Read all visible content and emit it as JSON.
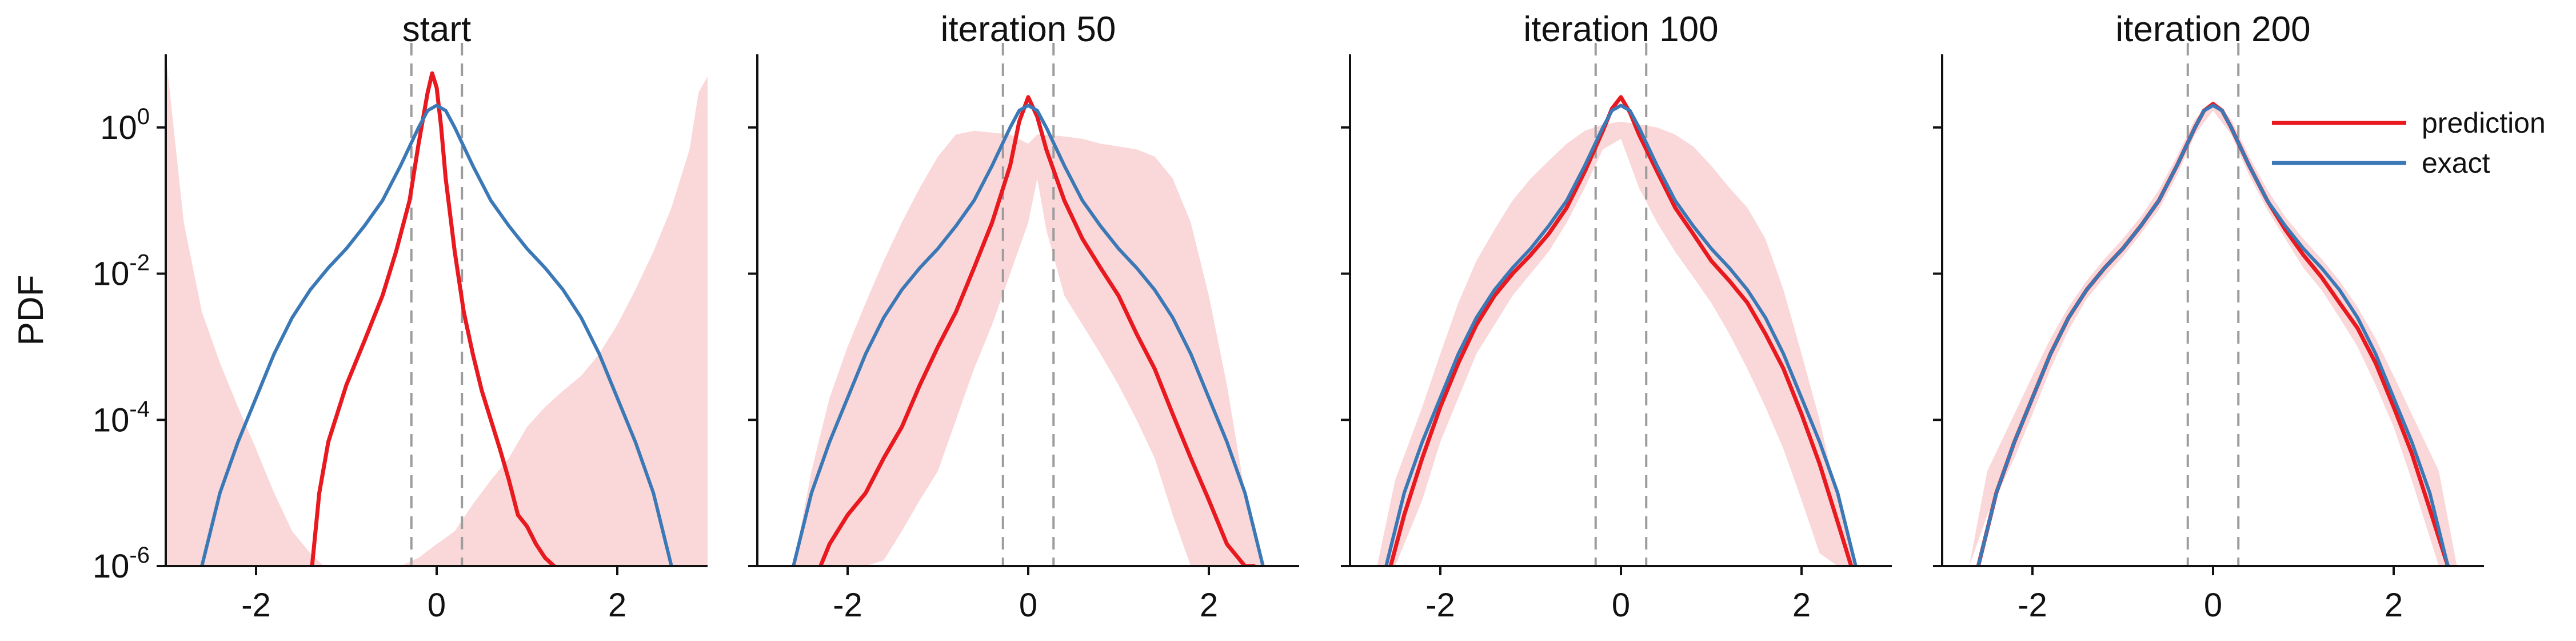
{
  "chart_data": {
    "type": "line",
    "ylabel": "PDF",
    "yscale": "log",
    "ylim": [
      1e-06,
      10
    ],
    "xlim": [
      -3,
      3
    ],
    "xticks": [
      -2,
      0,
      2
    ],
    "xtick_labels": [
      "-2",
      "0",
      "2"
    ],
    "yticks": [
      {
        "value": 1,
        "base": "10",
        "exp": "0"
      },
      {
        "value": 0.01,
        "base": "10",
        "exp": "-2"
      },
      {
        "value": 0.0001,
        "base": "10",
        "exp": "-4"
      },
      {
        "value": 1e-06,
        "base": "10",
        "exp": "-6"
      }
    ],
    "reference_lines_x": [
      -0.28,
      0.28
    ],
    "colors": {
      "prediction": "#e8191f",
      "exact": "#3b78b6",
      "band": "#f4a6a8",
      "reference": "#9c9c9c"
    },
    "legend": [
      {
        "label": "prediction",
        "series": "prediction"
      },
      {
        "label": "exact",
        "series": "exact"
      }
    ],
    "exact": {
      "x": [
        -2.6,
        -2.4,
        -2.2,
        -2.0,
        -1.8,
        -1.6,
        -1.4,
        -1.2,
        -1.0,
        -0.8,
        -0.6,
        -0.4,
        -0.2,
        -0.1,
        0.0,
        0.1,
        0.2,
        0.4,
        0.6,
        0.8,
        1.0,
        1.2,
        1.4,
        1.6,
        1.8,
        2.0,
        2.2,
        2.4,
        2.6
      ],
      "y": [
        1e-06,
        1e-05,
        5e-05,
        0.0002,
        0.0008,
        0.0025,
        0.006,
        0.012,
        0.022,
        0.045,
        0.1,
        0.3,
        1.0,
        1.7,
        2.0,
        1.7,
        1.0,
        0.3,
        0.1,
        0.045,
        0.022,
        0.012,
        0.006,
        0.0025,
        0.0008,
        0.0002,
        5e-05,
        1e-05,
        1e-06
      ]
    },
    "panels": [
      {
        "title": "start",
        "prediction": {
          "x": [
            -1.38,
            -1.3,
            -1.2,
            -1.0,
            -0.8,
            -0.6,
            -0.45,
            -0.3,
            -0.2,
            -0.1,
            -0.05,
            0.0,
            0.05,
            0.1,
            0.2,
            0.3,
            0.4,
            0.5,
            0.6,
            0.7,
            0.8,
            0.9,
            1.0,
            1.1,
            1.2,
            1.3
          ],
          "y": [
            1e-06,
            1e-05,
            5e-05,
            0.0003,
            0.0012,
            0.005,
            0.02,
            0.1,
            0.6,
            3.0,
            5.5,
            3.5,
            1.0,
            0.2,
            0.02,
            0.003,
            0.0008,
            0.00025,
            0.0001,
            4e-05,
            1.5e-05,
            5e-06,
            3.5e-06,
            2e-06,
            1.3e-06,
            1e-06
          ]
        },
        "band": {
          "x": [
            -3.0,
            -2.8,
            -2.6,
            -2.4,
            -2.2,
            -2.0,
            -1.8,
            -1.6,
            -1.4,
            -1.25,
            -1.0,
            -0.7,
            -0.4,
            -0.2,
            0.0,
            0.2,
            0.4,
            0.6,
            0.8,
            1.0,
            1.2,
            1.4,
            1.6,
            1.8,
            2.0,
            2.2,
            2.4,
            2.6,
            2.8,
            2.9,
            3.0
          ],
          "upper": [
            10,
            0.05,
            0.003,
            0.0006,
            0.00015,
            4e-05,
            1e-05,
            3e-06,
            1.5e-06,
            1e-06,
            1e-06,
            1e-06,
            1e-06,
            1.3e-06,
            2e-06,
            3e-06,
            7e-06,
            1.5e-05,
            3e-05,
            8e-05,
            0.00015,
            0.00025,
            0.0004,
            0.0008,
            0.002,
            0.006,
            0.02,
            0.08,
            0.5,
            3.0,
            5.0
          ],
          "lower": [
            1e-06,
            1e-06,
            1e-06,
            1e-06,
            1e-06,
            1e-06,
            1e-06,
            1e-06,
            1e-06,
            1e-06,
            1e-06,
            1e-06,
            1e-06,
            1e-06,
            1e-06,
            1e-06,
            1e-06,
            1e-06,
            1e-06,
            1e-06,
            1e-06,
            1e-06,
            1e-06,
            1e-06,
            1e-06,
            1e-06,
            1e-06,
            1e-06,
            1e-06,
            1e-06,
            1e-06
          ]
        }
      },
      {
        "title": "iteration 50",
        "prediction": {
          "x": [
            -2.3,
            -2.2,
            -2.0,
            -1.8,
            -1.6,
            -1.4,
            -1.2,
            -1.0,
            -0.8,
            -0.6,
            -0.4,
            -0.2,
            -0.1,
            0.0,
            0.1,
            0.2,
            0.4,
            0.6,
            0.8,
            1.0,
            1.2,
            1.4,
            1.6,
            1.8,
            2.0,
            2.2,
            2.4,
            2.5
          ],
          "y": [
            1e-06,
            2e-06,
            5e-06,
            1e-05,
            3e-05,
            8e-05,
            0.0003,
            0.001,
            0.003,
            0.012,
            0.05,
            0.3,
            1.2,
            2.6,
            1.4,
            0.5,
            0.1,
            0.03,
            0.012,
            0.005,
            0.0015,
            0.0005,
            0.00012,
            3e-05,
            8e-06,
            2e-06,
            1e-06,
            1e-06
          ]
        },
        "band": {
          "x": [
            -2.6,
            -2.4,
            -2.2,
            -2.0,
            -1.8,
            -1.6,
            -1.4,
            -1.2,
            -1.0,
            -0.8,
            -0.6,
            -0.4,
            -0.2,
            0.0,
            0.1,
            0.2,
            0.4,
            0.6,
            0.8,
            1.0,
            1.2,
            1.4,
            1.6,
            1.8,
            2.0,
            2.2,
            2.4,
            2.6
          ],
          "upper": [
            1e-06,
            2e-05,
            0.0002,
            0.001,
            0.004,
            0.015,
            0.05,
            0.15,
            0.4,
            0.8,
            0.9,
            0.85,
            0.8,
            0.6,
            0.8,
            0.8,
            0.75,
            0.7,
            0.6,
            0.55,
            0.5,
            0.4,
            0.2,
            0.05,
            0.005,
            0.0003,
            1e-05,
            1e-06
          ],
          "lower": [
            1e-06,
            1e-06,
            1e-06,
            1e-06,
            1e-06,
            1.2e-06,
            3e-06,
            8e-06,
            2e-05,
            0.0001,
            0.0005,
            0.002,
            0.01,
            0.05,
            0.2,
            0.04,
            0.005,
            0.002,
            0.0008,
            0.0003,
            0.0001,
            3e-05,
            5e-06,
            1e-06,
            1e-06,
            1e-06,
            1e-06,
            1e-06
          ]
        }
      },
      {
        "title": "iteration 100",
        "prediction": {
          "x": [
            -2.55,
            -2.4,
            -2.2,
            -2.0,
            -1.8,
            -1.6,
            -1.4,
            -1.2,
            -1.0,
            -0.8,
            -0.6,
            -0.4,
            -0.2,
            -0.1,
            0.0,
            0.1,
            0.2,
            0.4,
            0.6,
            0.8,
            1.0,
            1.2,
            1.4,
            1.6,
            1.8,
            2.0,
            2.2,
            2.4,
            2.55
          ],
          "y": [
            1e-06,
            5e-06,
            3e-05,
            0.00015,
            0.0006,
            0.002,
            0.005,
            0.01,
            0.018,
            0.035,
            0.08,
            0.25,
            0.9,
            1.8,
            2.6,
            1.6,
            0.8,
            0.25,
            0.08,
            0.035,
            0.015,
            0.008,
            0.004,
            0.0015,
            0.0005,
            0.00012,
            2.5e-05,
            4e-06,
            1e-06
          ]
        },
        "band": {
          "x": [
            -2.7,
            -2.5,
            -2.2,
            -2.0,
            -1.8,
            -1.6,
            -1.4,
            -1.2,
            -1.0,
            -0.8,
            -0.6,
            -0.4,
            -0.2,
            0.0,
            0.2,
            0.4,
            0.6,
            0.8,
            1.0,
            1.2,
            1.4,
            1.6,
            1.8,
            2.0,
            2.2,
            2.4,
            2.6,
            2.7
          ],
          "upper": [
            1e-06,
            1.5e-05,
            0.00015,
            0.0008,
            0.004,
            0.015,
            0.04,
            0.1,
            0.2,
            0.35,
            0.6,
            0.9,
            1.1,
            1.2,
            1.1,
            1.0,
            0.8,
            0.55,
            0.3,
            0.15,
            0.08,
            0.03,
            0.006,
            0.0008,
            0.0001,
            8e-06,
            1e-06,
            1e-06
          ],
          "lower": [
            1e-06,
            1e-06,
            8e-06,
            5e-05,
            0.0002,
            0.0008,
            0.002,
            0.005,
            0.01,
            0.02,
            0.05,
            0.15,
            0.5,
            0.7,
            0.15,
            0.05,
            0.02,
            0.009,
            0.004,
            0.0015,
            0.0005,
            0.00015,
            4e-05,
            8e-06,
            1.5e-06,
            1e-06,
            1e-06,
            1e-06
          ]
        }
      },
      {
        "title": "iteration 200",
        "prediction": {
          "x": [
            -2.6,
            -2.4,
            -2.2,
            -2.0,
            -1.8,
            -1.6,
            -1.4,
            -1.2,
            -1.0,
            -0.8,
            -0.6,
            -0.4,
            -0.2,
            -0.1,
            0.0,
            0.1,
            0.2,
            0.4,
            0.6,
            0.8,
            1.0,
            1.2,
            1.4,
            1.6,
            1.8,
            2.0,
            2.2,
            2.4,
            2.6
          ],
          "y": [
            1e-06,
            1e-05,
            5e-05,
            0.0002,
            0.0008,
            0.0025,
            0.006,
            0.012,
            0.022,
            0.045,
            0.1,
            0.3,
            1.0,
            1.7,
            2.1,
            1.7,
            1.0,
            0.3,
            0.1,
            0.04,
            0.018,
            0.009,
            0.004,
            0.0018,
            0.0006,
            0.00015,
            3.5e-05,
            6e-06,
            1e-06
          ]
        },
        "band": {
          "x": [
            -2.7,
            -2.5,
            -2.2,
            -2.0,
            -1.8,
            -1.6,
            -1.4,
            -1.2,
            -1.0,
            -0.8,
            -0.6,
            -0.4,
            -0.2,
            0.0,
            0.2,
            0.4,
            0.6,
            0.8,
            1.0,
            1.2,
            1.4,
            1.6,
            1.8,
            2.0,
            2.2,
            2.5,
            2.7
          ],
          "upper": [
            1e-06,
            2e-05,
            0.00012,
            0.0004,
            0.0013,
            0.0035,
            0.008,
            0.016,
            0.03,
            0.06,
            0.14,
            0.4,
            1.3,
            2.3,
            1.3,
            0.4,
            0.14,
            0.06,
            0.03,
            0.016,
            0.008,
            0.0035,
            0.0013,
            0.0004,
            0.00012,
            2e-05,
            1e-06
          ],
          "lower": [
            1e-06,
            5e-06,
            3e-05,
            0.00012,
            0.0005,
            0.0017,
            0.0045,
            0.009,
            0.017,
            0.035,
            0.075,
            0.22,
            0.8,
            1.7,
            0.8,
            0.22,
            0.075,
            0.03,
            0.012,
            0.006,
            0.0025,
            0.001,
            0.0003,
            8e-05,
            1.5e-05,
            1e-06,
            1e-06
          ]
        }
      }
    ]
  }
}
